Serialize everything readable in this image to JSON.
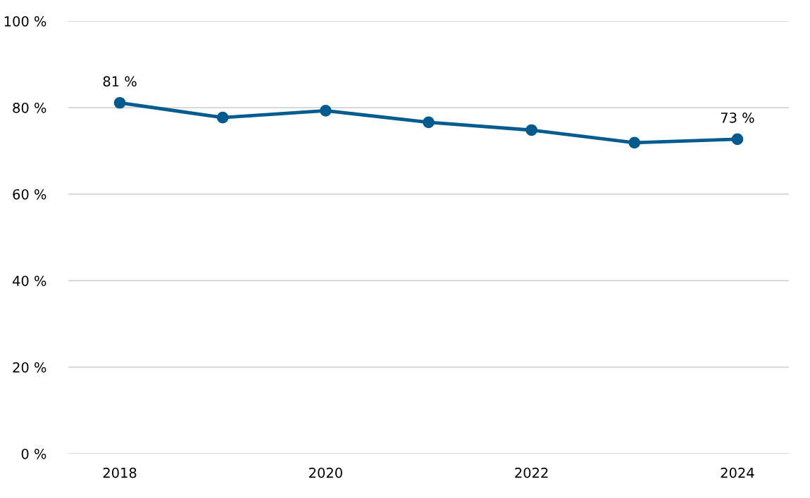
{
  "chart_data": {
    "type": "line",
    "x": [
      2018,
      2019,
      2020,
      2021,
      2022,
      2023,
      2024
    ],
    "series": [
      {
        "color": "#005b8f",
        "values": [
          81.1,
          77.7,
          79.3,
          76.6,
          74.8,
          71.9,
          72.7
        ],
        "value_labels": [
          "81 %",
          null,
          null,
          null,
          null,
          null,
          "73 %"
        ]
      }
    ],
    "xlim": [
      2017.5,
      2024.5
    ],
    "xticks": [
      2018,
      2020,
      2022,
      2024
    ],
    "ylim": [
      0,
      100
    ],
    "yticks": [
      {
        "value": 0,
        "label": "0 %"
      },
      {
        "value": 20,
        "label": "20 %"
      },
      {
        "value": 40,
        "label": "40 %"
      },
      {
        "value": 60,
        "label": "60 %"
      },
      {
        "value": 80,
        "label": "80 %"
      },
      {
        "value": 100,
        "label": "100 %"
      }
    ],
    "grid": "y",
    "marker": "circle",
    "line_style": "solid",
    "legend": false
  }
}
